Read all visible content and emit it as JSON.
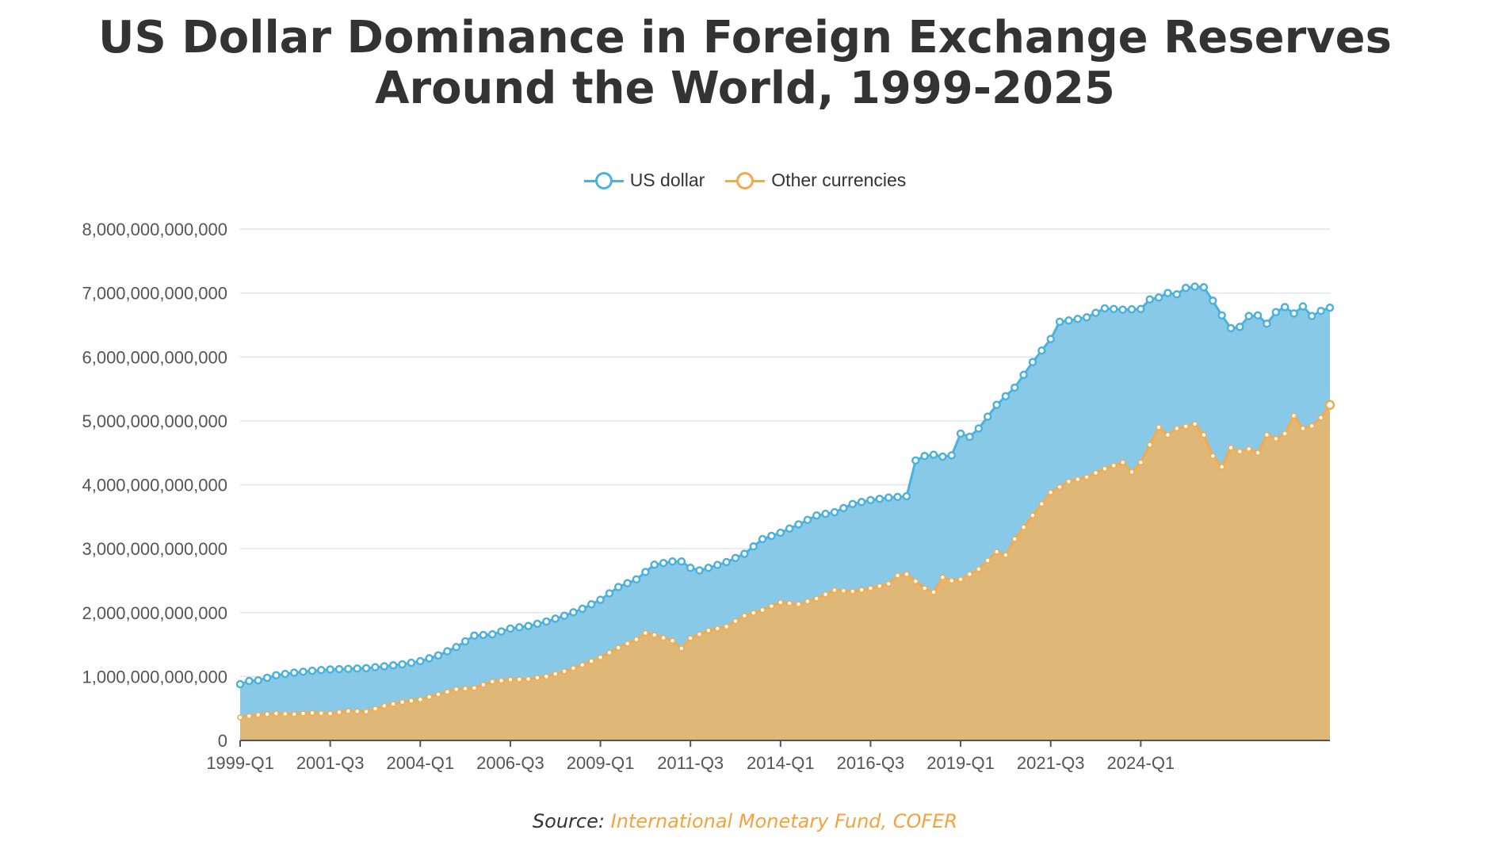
{
  "title": "US Dollar Dominance in Foreign Exchange Reserves Around the World, 1999-2025",
  "source_label": "Source:",
  "source_text": "International Monetary Fund, COFER",
  "colors": {
    "usd_line": "#4bb1de",
    "usd_fill": "#89c9e8",
    "other_line": "#f4a94a",
    "other_fill": "#dfb878",
    "grid": "#e0e4ee",
    "axis_text": "#555555",
    "link": "#f4a23b"
  },
  "chart_data": {
    "type": "area",
    "stacked": true,
    "ylim": [
      0,
      8000000000000
    ],
    "yticks": [
      0,
      1000000000000,
      2000000000000,
      3000000000000,
      4000000000000,
      5000000000000,
      6000000000000,
      7000000000000,
      8000000000000
    ],
    "ytick_labels": [
      "0",
      "1,000,000,000,000",
      "2,000,000,000,000",
      "3,000,000,000,000",
      "4,000,000,000,000",
      "5,000,000,000,000",
      "6,000,000,000,000",
      "7,000,000,000,000",
      "8,000,000,000,000"
    ],
    "x_start": "1999-Q1",
    "x_end": "2025-Q2",
    "xtick_labels": [
      "1999-Q1",
      "2001-Q3",
      "2004-Q1",
      "2006-Q3",
      "2009-Q1",
      "2011-Q3",
      "2014-Q1",
      "2016-Q3",
      "2019-Q1",
      "2021-Q3",
      "2024-Q1"
    ],
    "grid": true,
    "legend_position": "top-center",
    "series": [
      {
        "name": "US dollar",
        "key": "usd",
        "stacked_total_anchors": [
          [
            0,
            0.88
          ],
          [
            1,
            0.93
          ],
          [
            2,
            0.94
          ],
          [
            3,
            0.98
          ],
          [
            4,
            1.02
          ],
          [
            6,
            1.06
          ],
          [
            8,
            1.09
          ],
          [
            10,
            1.11
          ],
          [
            12,
            1.12
          ],
          [
            14,
            1.13
          ],
          [
            16,
            1.16
          ],
          [
            18,
            1.19
          ],
          [
            20,
            1.24
          ],
          [
            22,
            1.33
          ],
          [
            24,
            1.46
          ],
          [
            26,
            1.64
          ],
          [
            28,
            1.66
          ],
          [
            30,
            1.75
          ],
          [
            32,
            1.79
          ],
          [
            34,
            1.86
          ],
          [
            36,
            1.95
          ],
          [
            38,
            2.06
          ],
          [
            40,
            2.2
          ],
          [
            42,
            2.4
          ],
          [
            44,
            2.52
          ],
          [
            46,
            2.75
          ],
          [
            48,
            2.8
          ],
          [
            49,
            2.8
          ],
          [
            50,
            2.7
          ],
          [
            51,
            2.66
          ],
          [
            52,
            2.7
          ],
          [
            54,
            2.79
          ],
          [
            56,
            2.92
          ],
          [
            58,
            3.15
          ],
          [
            60,
            3.25
          ],
          [
            62,
            3.38
          ],
          [
            64,
            3.52
          ],
          [
            66,
            3.57
          ],
          [
            68,
            3.7
          ],
          [
            70,
            3.76
          ],
          [
            72,
            3.8
          ],
          [
            74,
            3.82
          ],
          [
            75,
            4.38
          ],
          [
            76,
            4.45
          ],
          [
            77,
            4.47
          ],
          [
            78,
            4.44
          ],
          [
            79,
            4.46
          ],
          [
            80,
            4.8
          ],
          [
            81,
            4.75
          ],
          [
            82,
            4.88
          ],
          [
            84,
            5.25
          ],
          [
            86,
            5.52
          ],
          [
            88,
            5.92
          ],
          [
            90,
            6.28
          ],
          [
            91,
            6.55
          ],
          [
            92,
            6.57
          ],
          [
            94,
            6.62
          ],
          [
            96,
            6.76
          ],
          [
            98,
            6.74
          ],
          [
            100,
            6.75
          ],
          [
            101,
            6.9
          ],
          [
            102,
            6.93
          ],
          [
            103,
            7.0
          ],
          [
            104,
            6.98
          ],
          [
            105,
            7.08
          ],
          [
            106,
            7.1
          ],
          [
            107,
            7.09
          ],
          [
            108,
            6.88
          ],
          [
            109,
            6.65
          ],
          [
            110,
            6.45
          ],
          [
            111,
            6.47
          ],
          [
            112,
            6.64
          ],
          [
            113,
            6.65
          ],
          [
            114,
            6.52
          ],
          [
            115,
            6.7
          ],
          [
            116,
            6.78
          ],
          [
            117,
            6.68
          ],
          [
            118,
            6.79
          ],
          [
            119,
            6.64
          ],
          [
            120,
            6.72
          ],
          [
            121,
            6.77
          ]
        ]
      },
      {
        "name": "Other currencies",
        "key": "other",
        "value_anchors": [
          [
            0,
            0.36
          ],
          [
            2,
            0.4
          ],
          [
            4,
            0.42
          ],
          [
            6,
            0.41
          ],
          [
            8,
            0.43
          ],
          [
            10,
            0.42
          ],
          [
            12,
            0.46
          ],
          [
            14,
            0.45
          ],
          [
            16,
            0.54
          ],
          [
            18,
            0.6
          ],
          [
            20,
            0.64
          ],
          [
            22,
            0.72
          ],
          [
            24,
            0.8
          ],
          [
            26,
            0.82
          ],
          [
            28,
            0.92
          ],
          [
            30,
            0.95
          ],
          [
            32,
            0.96
          ],
          [
            34,
            1.0
          ],
          [
            36,
            1.08
          ],
          [
            38,
            1.18
          ],
          [
            40,
            1.3
          ],
          [
            42,
            1.45
          ],
          [
            44,
            1.58
          ],
          [
            45,
            1.68
          ],
          [
            46,
            1.65
          ],
          [
            48,
            1.56
          ],
          [
            49,
            1.44
          ],
          [
            50,
            1.6
          ],
          [
            52,
            1.72
          ],
          [
            54,
            1.78
          ],
          [
            56,
            1.95
          ],
          [
            58,
            2.04
          ],
          [
            60,
            2.16
          ],
          [
            62,
            2.13
          ],
          [
            64,
            2.22
          ],
          [
            66,
            2.35
          ],
          [
            68,
            2.33
          ],
          [
            70,
            2.38
          ],
          [
            72,
            2.45
          ],
          [
            73,
            2.58
          ],
          [
            74,
            2.6
          ],
          [
            76,
            2.38
          ],
          [
            77,
            2.32
          ],
          [
            78,
            2.55
          ],
          [
            79,
            2.5
          ],
          [
            80,
            2.52
          ],
          [
            82,
            2.68
          ],
          [
            84,
            2.95
          ],
          [
            85,
            2.9
          ],
          [
            86,
            3.15
          ],
          [
            88,
            3.52
          ],
          [
            90,
            3.88
          ],
          [
            92,
            4.05
          ],
          [
            94,
            4.12
          ],
          [
            96,
            4.25
          ],
          [
            98,
            4.35
          ],
          [
            99,
            4.2
          ],
          [
            100,
            4.35
          ],
          [
            102,
            4.9
          ],
          [
            103,
            4.78
          ],
          [
            104,
            4.88
          ],
          [
            106,
            4.95
          ],
          [
            107,
            4.78
          ],
          [
            108,
            4.45
          ],
          [
            109,
            4.28
          ],
          [
            110,
            4.58
          ],
          [
            111,
            4.52
          ],
          [
            112,
            4.56
          ],
          [
            113,
            4.5
          ],
          [
            114,
            4.78
          ],
          [
            115,
            4.72
          ],
          [
            116,
            4.8
          ],
          [
            117,
            5.08
          ],
          [
            118,
            4.88
          ],
          [
            119,
            4.92
          ],
          [
            120,
            5.05
          ],
          [
            121,
            5.25
          ]
        ]
      }
    ]
  }
}
